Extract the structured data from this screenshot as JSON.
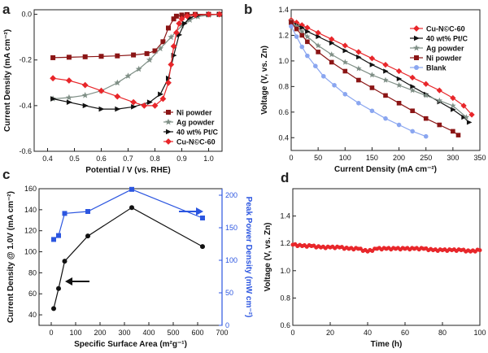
{
  "colors": {
    "red": "#e8262a",
    "black": "#111111",
    "gray": "#7f8f86",
    "darkred": "#8b1515",
    "lightblue": "#8aa6f0",
    "blue": "#2c56e0"
  },
  "chart_data": [
    {
      "panel": "a",
      "type": "line",
      "xlabel": "Potential / V (vs. RHE)",
      "ylabel": "Current Density (mA cm⁻²)",
      "xlim": [
        0.35,
        1.05
      ],
      "ylim": [
        -0.6,
        0.02
      ],
      "xticks": [
        "0.4",
        "0.5",
        "0.6",
        "0.7",
        "0.8",
        "0.9",
        "1.0"
      ],
      "yticks": [
        "0.0",
        "-0.2",
        "-0.4",
        "-0.6"
      ],
      "legend_position": "lower-right",
      "series": [
        {
          "name": "Ni powder",
          "color": "#8b1515",
          "marker": "square",
          "x": [
            0.42,
            0.48,
            0.54,
            0.6,
            0.66,
            0.72,
            0.77,
            0.8,
            0.83,
            0.85,
            0.87,
            0.88,
            0.9,
            0.92,
            0.95,
            1.0,
            1.04
          ],
          "y": [
            -0.19,
            -0.188,
            -0.186,
            -0.184,
            -0.182,
            -0.178,
            -0.172,
            -0.16,
            -0.12,
            -0.06,
            -0.02,
            -0.008,
            -0.003,
            -0.001,
            0.0,
            0.0,
            0.0
          ]
        },
        {
          "name": "Ag powder",
          "color": "#7f8f86",
          "marker": "star",
          "x": [
            0.42,
            0.48,
            0.54,
            0.6,
            0.66,
            0.7,
            0.74,
            0.78,
            0.82,
            0.86,
            0.9,
            0.93,
            0.96,
            1.0,
            1.04
          ],
          "y": [
            -0.37,
            -0.365,
            -0.355,
            -0.335,
            -0.3,
            -0.27,
            -0.24,
            -0.2,
            -0.15,
            -0.1,
            -0.05,
            -0.025,
            -0.01,
            -0.003,
            0.0
          ]
        },
        {
          "name": "40 wt% Pt/C",
          "color": "#111111",
          "marker": "triangle",
          "x": [
            0.42,
            0.48,
            0.54,
            0.6,
            0.66,
            0.72,
            0.78,
            0.82,
            0.85,
            0.87,
            0.89,
            0.91,
            0.93,
            0.96,
            1.0,
            1.04
          ],
          "y": [
            -0.37,
            -0.385,
            -0.4,
            -0.415,
            -0.415,
            -0.405,
            -0.385,
            -0.35,
            -0.28,
            -0.18,
            -0.09,
            -0.04,
            -0.015,
            -0.004,
            0.0,
            0.0
          ]
        },
        {
          "name": "Cu-N©C-60",
          "color": "#e8262a",
          "marker": "diamond",
          "x": [
            0.42,
            0.48,
            0.54,
            0.6,
            0.66,
            0.72,
            0.76,
            0.8,
            0.83,
            0.85,
            0.86,
            0.87,
            0.88,
            0.89,
            0.9,
            0.92,
            0.95,
            1.0,
            1.04
          ],
          "y": [
            -0.28,
            -0.29,
            -0.31,
            -0.335,
            -0.36,
            -0.385,
            -0.4,
            -0.4,
            -0.37,
            -0.3,
            -0.22,
            -0.14,
            -0.08,
            -0.04,
            -0.02,
            -0.008,
            -0.003,
            0.0,
            0.0
          ]
        }
      ],
      "legend": [
        "Ni powder",
        "Ag powder",
        "40 wt% Pt/C",
        "Cu-N©C-60"
      ]
    },
    {
      "panel": "b",
      "type": "line",
      "xlabel": "Current Density (mA cm⁻²)",
      "ylabel": "Voltage (V, vs. Zn)",
      "xlim": [
        0,
        350
      ],
      "ylim": [
        0.3,
        1.4
      ],
      "xticks": [
        "0",
        "50",
        "100",
        "150",
        "200",
        "250",
        "300",
        "350"
      ],
      "yticks": [
        "0.4",
        "0.6",
        "0.8",
        "1.0",
        "1.2",
        "1.4"
      ],
      "legend_position": "top-right",
      "series": [
        {
          "name": "Cu-N©C-60",
          "color": "#e8262a",
          "marker": "diamond",
          "x": [
            0,
            10,
            20,
            30,
            50,
            75,
            100,
            125,
            150,
            175,
            200,
            225,
            250,
            275,
            300,
            320,
            335
          ],
          "y": [
            1.32,
            1.3,
            1.28,
            1.26,
            1.22,
            1.17,
            1.12,
            1.07,
            1.02,
            0.97,
            0.92,
            0.87,
            0.82,
            0.77,
            0.71,
            0.65,
            0.58
          ]
        },
        {
          "name": "40 wt% Pt/C",
          "color": "#111111",
          "marker": "triangle",
          "x": [
            0,
            10,
            20,
            30,
            50,
            75,
            100,
            125,
            150,
            175,
            200,
            225,
            250,
            275,
            300,
            320,
            330
          ],
          "y": [
            1.3,
            1.28,
            1.26,
            1.23,
            1.19,
            1.14,
            1.08,
            1.03,
            0.97,
            0.92,
            0.86,
            0.8,
            0.74,
            0.68,
            0.62,
            0.56,
            0.52
          ]
        },
        {
          "name": "Ag powder",
          "color": "#7f8f86",
          "marker": "star",
          "x": [
            0,
            10,
            20,
            30,
            50,
            75,
            100,
            125,
            150,
            175,
            200,
            225,
            250,
            275,
            300,
            325
          ],
          "y": [
            1.31,
            1.27,
            1.23,
            1.19,
            1.12,
            1.05,
            0.99,
            0.94,
            0.89,
            0.85,
            0.81,
            0.77,
            0.73,
            0.69,
            0.65,
            0.56
          ]
        },
        {
          "name": "Ni powder",
          "color": "#8b1515",
          "marker": "square",
          "x": [
            0,
            10,
            20,
            30,
            50,
            75,
            100,
            125,
            150,
            175,
            200,
            225,
            250,
            275,
            300,
            310
          ],
          "y": [
            1.3,
            1.25,
            1.2,
            1.15,
            1.07,
            0.99,
            0.92,
            0.85,
            0.79,
            0.73,
            0.67,
            0.61,
            0.55,
            0.5,
            0.45,
            0.42
          ]
        },
        {
          "name": "Blank",
          "color": "#8aa6f0",
          "marker": "circle",
          "x": [
            0,
            10,
            20,
            30,
            45,
            60,
            80,
            100,
            125,
            150,
            175,
            200,
            225,
            250
          ],
          "y": [
            1.27,
            1.19,
            1.11,
            1.04,
            0.96,
            0.88,
            0.81,
            0.74,
            0.67,
            0.61,
            0.55,
            0.5,
            0.45,
            0.41
          ]
        }
      ],
      "legend": [
        "Cu-N©C-60",
        "40 wt% Pt/C",
        "Ag powder",
        "Ni powder",
        "Blank"
      ]
    },
    {
      "panel": "c",
      "type": "line",
      "xlabel": "Specific Surface Area (m²g⁻¹)",
      "ylabel": "Current Density @ 1.0V (mA cm⁻²)",
      "ylabel_right": "Peak Power Density (mW cm⁻²)",
      "xlim": [
        -50,
        700
      ],
      "ylim": [
        30,
        160
      ],
      "ylim_right": [
        0,
        210
      ],
      "xticks": [
        "0",
        "100",
        "200",
        "300",
        "400",
        "500",
        "600",
        "700"
      ],
      "yticks": [
        "40",
        "60",
        "80",
        "100",
        "120",
        "140",
        "160"
      ],
      "yticks_right": [
        "0",
        "50",
        "100",
        "150",
        "200"
      ],
      "series": [
        {
          "name": "Current Density @ 1.0V",
          "axis": "left",
          "color": "#111111",
          "marker": "circle",
          "x": [
            10,
            30,
            55,
            150,
            330,
            620
          ],
          "y": [
            46,
            65,
            91,
            115,
            142,
            105
          ]
        },
        {
          "name": "Peak Power Density",
          "axis": "right",
          "color": "#2c56e0",
          "marker": "square",
          "x": [
            10,
            30,
            55,
            150,
            330,
            620
          ],
          "y": [
            132,
            138,
            172,
            175,
            209,
            165
          ]
        }
      ]
    },
    {
      "panel": "d",
      "type": "scatter",
      "xlabel": "Time (h)",
      "ylabel": "Voltage (V, vs. Zn)",
      "xlim": [
        0,
        100
      ],
      "ylim": [
        0.6,
        1.6
      ],
      "xticks": [
        "0",
        "20",
        "40",
        "60",
        "80",
        "100"
      ],
      "yticks": [
        "0.6",
        "0.8",
        "1.0",
        "1.2",
        "1.4"
      ],
      "series": [
        {
          "name": "Voltage",
          "color": "#e8262a",
          "marker": "circle",
          "x": [
            0,
            5,
            10,
            15,
            20,
            25,
            30,
            35,
            40,
            45,
            50,
            55,
            60,
            65,
            70,
            75,
            80,
            85,
            90,
            95,
            100
          ],
          "y": [
            1.19,
            1.18,
            1.18,
            1.17,
            1.17,
            1.17,
            1.16,
            1.16,
            1.14,
            1.16,
            1.16,
            1.16,
            1.16,
            1.16,
            1.16,
            1.15,
            1.15,
            1.15,
            1.15,
            1.14,
            1.15
          ]
        }
      ]
    }
  ]
}
